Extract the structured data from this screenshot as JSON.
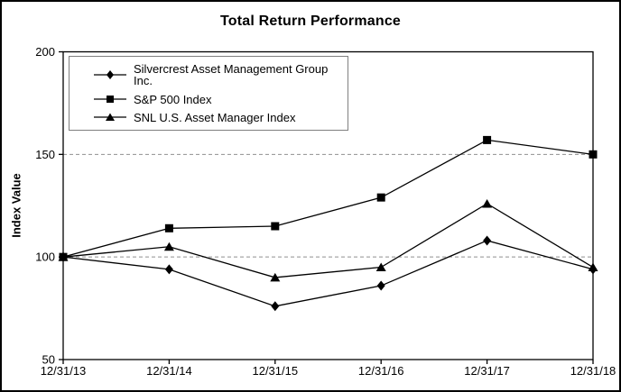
{
  "chart_data": {
    "type": "line",
    "title": "Total Return Performance",
    "ylabel": "Index Value",
    "xlabel": "",
    "categories": [
      "12/31/13",
      "12/31/14",
      "12/31/15",
      "12/31/16",
      "12/31/17",
      "12/31/18"
    ],
    "series": [
      {
        "name": "Silvercrest Asset Management Group Inc.",
        "marker": "diamond",
        "values": [
          100,
          94,
          76,
          86,
          108,
          94
        ]
      },
      {
        "name": "S&P 500 Index",
        "marker": "square",
        "values": [
          100,
          114,
          115,
          129,
          157,
          150
        ]
      },
      {
        "name": "SNL U.S. Asset Manager Index",
        "marker": "triangle",
        "values": [
          100,
          105,
          90,
          95,
          126,
          95
        ]
      }
    ],
    "ylim": [
      50,
      200
    ],
    "yticks": [
      200,
      150,
      100,
      50
    ],
    "gridline_values": [
      150,
      100
    ],
    "grid_style": "horizontal dashed",
    "legend_position": "top-left inside plot",
    "colors": {
      "series_line": "#000000",
      "marker_fill": "#000000",
      "gridline": "#909090",
      "axis": "#000000",
      "legend_border": "#7f7f7f",
      "text": "#000000",
      "background": "#ffffff",
      "figure_border": "#000000"
    }
  }
}
